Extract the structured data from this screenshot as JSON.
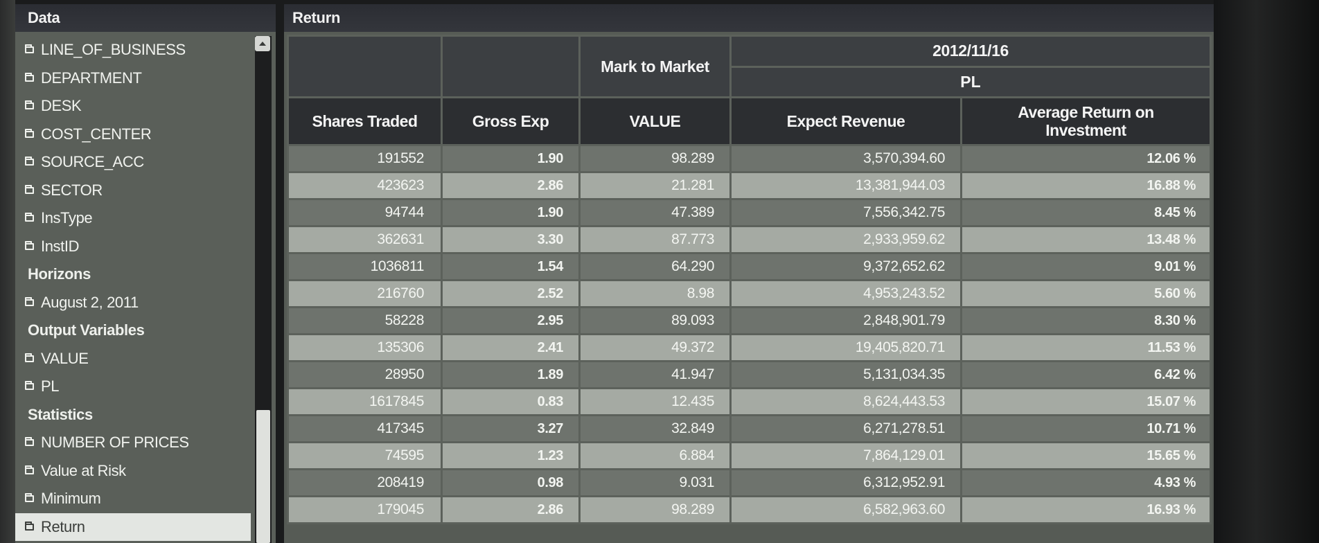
{
  "left_panel": {
    "title": "Data",
    "items": [
      {
        "label": "LINE_OF_BUSINESS",
        "type": "field"
      },
      {
        "label": "DEPARTMENT",
        "type": "field"
      },
      {
        "label": "DESK",
        "type": "field"
      },
      {
        "label": "COST_CENTER",
        "type": "field"
      },
      {
        "label": "SOURCE_ACC",
        "type": "field"
      },
      {
        "label": "SECTOR",
        "type": "field"
      },
      {
        "label": "InsType",
        "type": "field"
      },
      {
        "label": "InstID",
        "type": "field"
      },
      {
        "label": "Horizons",
        "type": "section"
      },
      {
        "label": "August 2, 2011",
        "type": "field"
      },
      {
        "label": "Output Variables",
        "type": "section"
      },
      {
        "label": "VALUE",
        "type": "field"
      },
      {
        "label": "PL",
        "type": "field"
      },
      {
        "label": "Statistics",
        "type": "section"
      },
      {
        "label": "NUMBER OF PRICES",
        "type": "field"
      },
      {
        "label": "Value at Risk",
        "type": "field"
      },
      {
        "label": "Minimum",
        "type": "field"
      },
      {
        "label": "Return",
        "type": "field",
        "selected": true
      }
    ]
  },
  "main_panel": {
    "title": "Return",
    "group_headers": {
      "mark_to_market": "Mark to Market",
      "date": "2012/11/16",
      "pl": "PL"
    },
    "columns": {
      "shares_traded": "Shares Traded",
      "gross_exp": "Gross Exp",
      "value": "VALUE",
      "expect_revenue": "Expect Revenue",
      "avg_return": "Average Return on Investment"
    },
    "rows": [
      {
        "shares_traded": "191552",
        "gross_exp": "1.90",
        "value": "98.289",
        "expect_revenue": "3,570,394.60",
        "avg_return": "12.06 %"
      },
      {
        "shares_traded": "423623",
        "gross_exp": "2.86",
        "value": "21.281",
        "expect_revenue": "13,381,944.03",
        "avg_return": "16.88 %"
      },
      {
        "shares_traded": "94744",
        "gross_exp": "1.90",
        "value": "47.389",
        "expect_revenue": "7,556,342.75",
        "avg_return": "8.45 %"
      },
      {
        "shares_traded": "362631",
        "gross_exp": "3.30",
        "value": "87.773",
        "expect_revenue": "2,933,959.62",
        "avg_return": "13.48 %"
      },
      {
        "shares_traded": "1036811",
        "gross_exp": "1.54",
        "value": "64.290",
        "expect_revenue": "9,372,652.62",
        "avg_return": "9.01 %"
      },
      {
        "shares_traded": "216760",
        "gross_exp": "2.52",
        "value": "8.98",
        "expect_revenue": "4,953,243.52",
        "avg_return": "5.60 %"
      },
      {
        "shares_traded": "58228",
        "gross_exp": "2.95",
        "value": "89.093",
        "expect_revenue": "2,848,901.79",
        "avg_return": "8.30 %"
      },
      {
        "shares_traded": "135306",
        "gross_exp": "2.41",
        "value": "49.372",
        "expect_revenue": "19,405,820.71",
        "avg_return": "11.53 %"
      },
      {
        "shares_traded": "28950",
        "gross_exp": "1.89",
        "value": "41.947",
        "expect_revenue": "5,131,034.35",
        "avg_return": "6.42 %"
      },
      {
        "shares_traded": "1617845",
        "gross_exp": "0.83",
        "value": "12.435",
        "expect_revenue": "8,624,443.53",
        "avg_return": "15.07 %"
      },
      {
        "shares_traded": "417345",
        "gross_exp": "3.27",
        "value": "32.849",
        "expect_revenue": "6,271,278.51",
        "avg_return": "10.71 %"
      },
      {
        "shares_traded": "74595",
        "gross_exp": "1.23",
        "value": "6.884",
        "expect_revenue": "7,864,129.01",
        "avg_return": "15.65 %"
      },
      {
        "shares_traded": "208419",
        "gross_exp": "0.98",
        "value": "9.031",
        "expect_revenue": "6,312,952.91",
        "avg_return": "4.93 %"
      },
      {
        "shares_traded": "179045",
        "gross_exp": "2.86",
        "value": "98.289",
        "expect_revenue": "6,582,963.60",
        "avg_return": "16.93 %"
      }
    ]
  }
}
